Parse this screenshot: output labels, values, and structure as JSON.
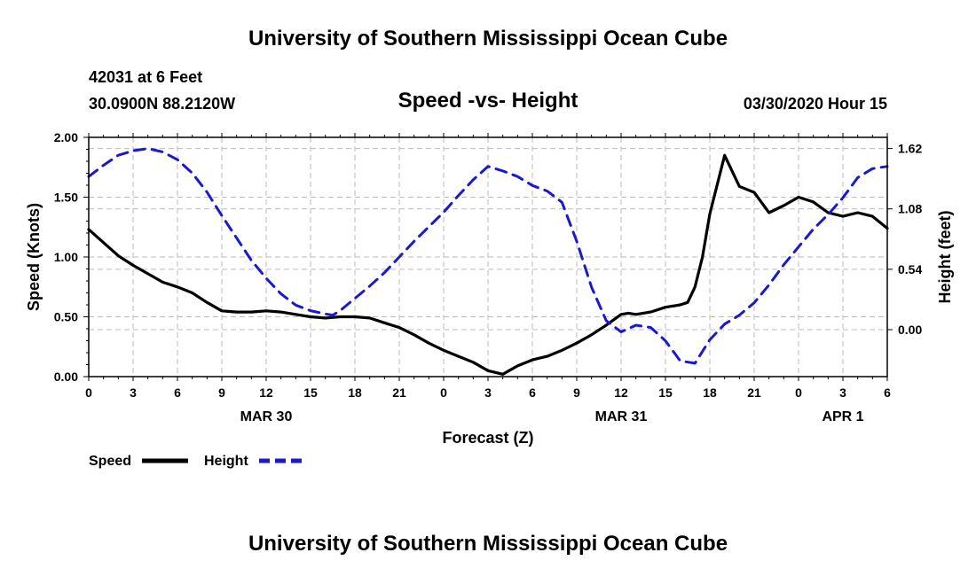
{
  "header": {
    "org_title": "University of Southern Mississippi Ocean Cube",
    "station": "42031 at 6 Feet",
    "coords": "30.0900N 88.2120W",
    "chart_title": "Speed -vs- Height",
    "datetime": "03/30/2020 Hour 15"
  },
  "footer": {
    "org_title": "University of Southern Mississippi Ocean Cube"
  },
  "colors": {
    "speed": "#000000",
    "height": "#1a1acc",
    "grid": "#bbbbbb"
  },
  "chart_data": {
    "type": "line",
    "title": "Speed -vs- Height",
    "xlabel": "Forecast (Z)",
    "ylabel": "Speed (Knots)",
    "y2label": "Height (feet)",
    "xlim": [
      0,
      54
    ],
    "ylim": [
      0,
      2.0
    ],
    "y2lim": [
      -0.42,
      1.72
    ],
    "grid": true,
    "x_ticks": [
      0,
      3,
      6,
      9,
      12,
      15,
      18,
      21,
      24,
      27,
      30,
      33,
      36,
      39,
      42,
      45,
      48,
      51,
      54
    ],
    "x_tick_labels": [
      "0",
      "3",
      "6",
      "9",
      "12",
      "15",
      "18",
      "21",
      "0",
      "3",
      "6",
      "9",
      "12",
      "15",
      "18",
      "21",
      "0",
      "3",
      "6"
    ],
    "date_labels": [
      {
        "x": 12,
        "label": "MAR 30"
      },
      {
        "x": 36,
        "label": "MAR 31"
      },
      {
        "x": 51,
        "label": "APR 1"
      }
    ],
    "y_ticks": [
      0,
      0.5,
      1.0,
      1.5,
      2.0
    ],
    "y_tick_labels": [
      "0.00",
      "0.50",
      "1.00",
      "1.50",
      "2.00"
    ],
    "y2_ticks": [
      0.0,
      0.54,
      1.08,
      1.62
    ],
    "y2_tick_labels": [
      "0.00",
      "0.54",
      "1.08",
      "1.62"
    ],
    "legend": [
      {
        "name": "Speed",
        "style": "solid"
      },
      {
        "name": "Height",
        "style": "dashed"
      }
    ],
    "series": [
      {
        "name": "Speed",
        "axis": "left",
        "x": [
          0,
          1,
          2,
          3,
          4,
          5,
          6,
          7,
          8,
          9,
          10,
          11,
          12,
          13,
          14,
          15,
          16,
          17,
          18,
          19,
          20,
          21,
          22,
          23,
          24,
          25,
          26,
          27,
          28,
          29,
          30,
          31,
          32,
          33,
          34,
          35,
          36,
          36.5,
          37,
          38,
          39,
          40,
          40.5,
          41,
          41.5,
          42,
          43,
          44,
          45,
          46,
          47,
          48,
          49,
          50,
          51,
          52,
          53,
          54
        ],
        "values": [
          1.23,
          1.12,
          1.01,
          0.93,
          0.86,
          0.79,
          0.75,
          0.7,
          0.62,
          0.55,
          0.54,
          0.54,
          0.55,
          0.54,
          0.52,
          0.5,
          0.49,
          0.5,
          0.5,
          0.49,
          0.45,
          0.41,
          0.35,
          0.28,
          0.22,
          0.17,
          0.12,
          0.05,
          0.02,
          0.09,
          0.14,
          0.17,
          0.22,
          0.28,
          0.35,
          0.43,
          0.52,
          0.53,
          0.52,
          0.54,
          0.58,
          0.6,
          0.62,
          0.75,
          1.0,
          1.36,
          1.85,
          1.59,
          1.54,
          1.37,
          1.43,
          1.5,
          1.46,
          1.37,
          1.34,
          1.37,
          1.34,
          1.24
        ]
      },
      {
        "name": "Height",
        "axis": "right",
        "x": [
          0,
          1,
          2,
          3,
          4,
          5,
          6,
          7,
          8,
          9,
          10,
          11,
          12,
          13,
          14,
          15,
          16,
          16.5,
          17,
          18,
          19,
          20,
          21,
          22,
          23,
          24,
          25,
          26,
          27,
          28,
          29,
          30,
          31,
          32,
          33,
          34,
          35,
          36,
          37,
          38,
          39,
          40,
          41,
          42,
          43,
          44,
          45,
          46,
          47,
          48,
          49,
          50,
          51,
          52,
          53,
          54
        ],
        "values": [
          1.37,
          1.47,
          1.56,
          1.6,
          1.62,
          1.59,
          1.52,
          1.4,
          1.23,
          1.02,
          0.82,
          0.62,
          0.46,
          0.32,
          0.22,
          0.17,
          0.14,
          0.13,
          0.17,
          0.28,
          0.39,
          0.51,
          0.65,
          0.79,
          0.92,
          1.05,
          1.2,
          1.34,
          1.46,
          1.42,
          1.37,
          1.29,
          1.24,
          1.14,
          0.79,
          0.38,
          0.08,
          -0.02,
          0.04,
          0.02,
          -0.1,
          -0.28,
          -0.3,
          -0.09,
          0.05,
          0.13,
          0.24,
          0.4,
          0.58,
          0.74,
          0.9,
          1.03,
          1.18,
          1.36,
          1.44,
          1.46
        ]
      }
    ]
  }
}
